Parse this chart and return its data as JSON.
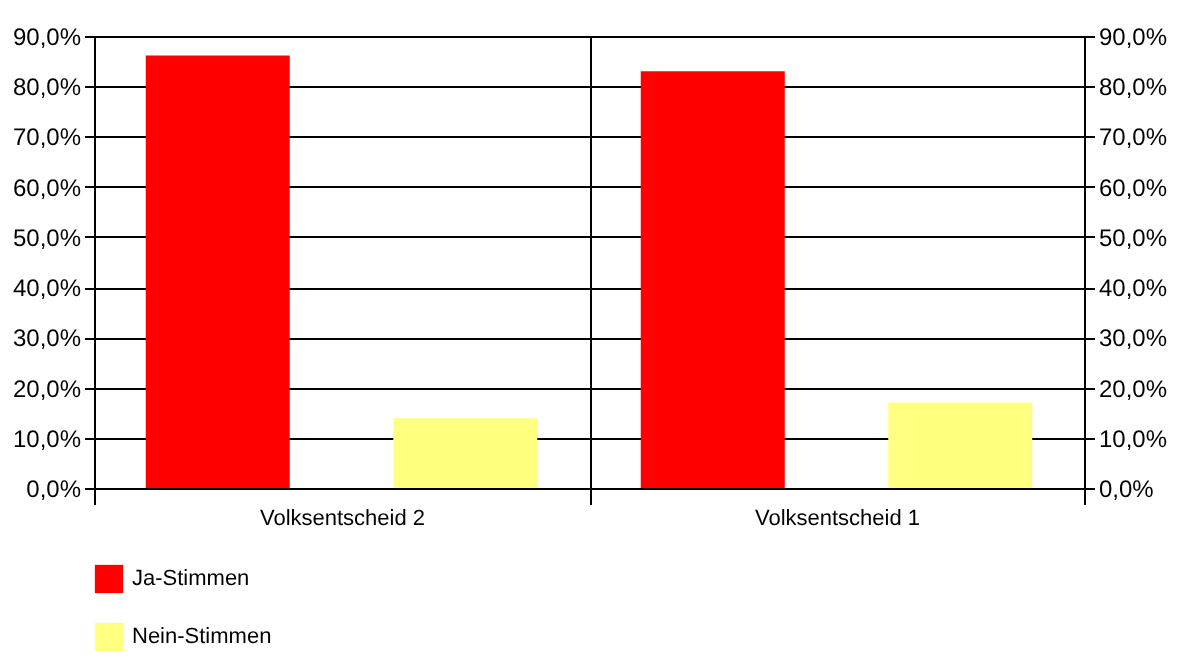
{
  "chart_data": {
    "type": "bar",
    "categories": [
      "Volksentscheid 2",
      "Volksentscheid 1"
    ],
    "series": [
      {
        "name": "Ja-Stimmen",
        "color": "#ff0000",
        "values": [
          86.1,
          83.0
        ]
      },
      {
        "name": "Nein-Stimmen",
        "color": "#ffff80",
        "values": [
          13.9,
          17.0
        ]
      }
    ],
    "ylim": [
      0,
      90
    ],
    "yticks": [
      {
        "value": 0,
        "label": "0,0%"
      },
      {
        "value": 10,
        "label": "10,0%"
      },
      {
        "value": 20,
        "label": "20,0%"
      },
      {
        "value": 30,
        "label": "30,0%"
      },
      {
        "value": 40,
        "label": "40,0%"
      },
      {
        "value": 50,
        "label": "50,0%"
      },
      {
        "value": 60,
        "label": "60,0%"
      },
      {
        "value": 70,
        "label": "70,0%"
      },
      {
        "value": 80,
        "label": "80,0%"
      },
      {
        "value": 90,
        "label": "90,0%"
      }
    ],
    "y2lim": [
      0,
      90
    ],
    "y2ticks": [
      {
        "value": 0,
        "label": "0,0%"
      },
      {
        "value": 10,
        "label": "10,0%"
      },
      {
        "value": 20,
        "label": "20,0%"
      },
      {
        "value": 30,
        "label": "30,0%"
      },
      {
        "value": 40,
        "label": "40,0%"
      },
      {
        "value": 50,
        "label": "50,0%"
      },
      {
        "value": 60,
        "label": "60,0%"
      },
      {
        "value": 70,
        "label": "70,0%"
      },
      {
        "value": 80,
        "label": "80,0%"
      },
      {
        "value": 90,
        "label": "90,0%"
      }
    ],
    "grid": true,
    "legend": "bottom"
  }
}
